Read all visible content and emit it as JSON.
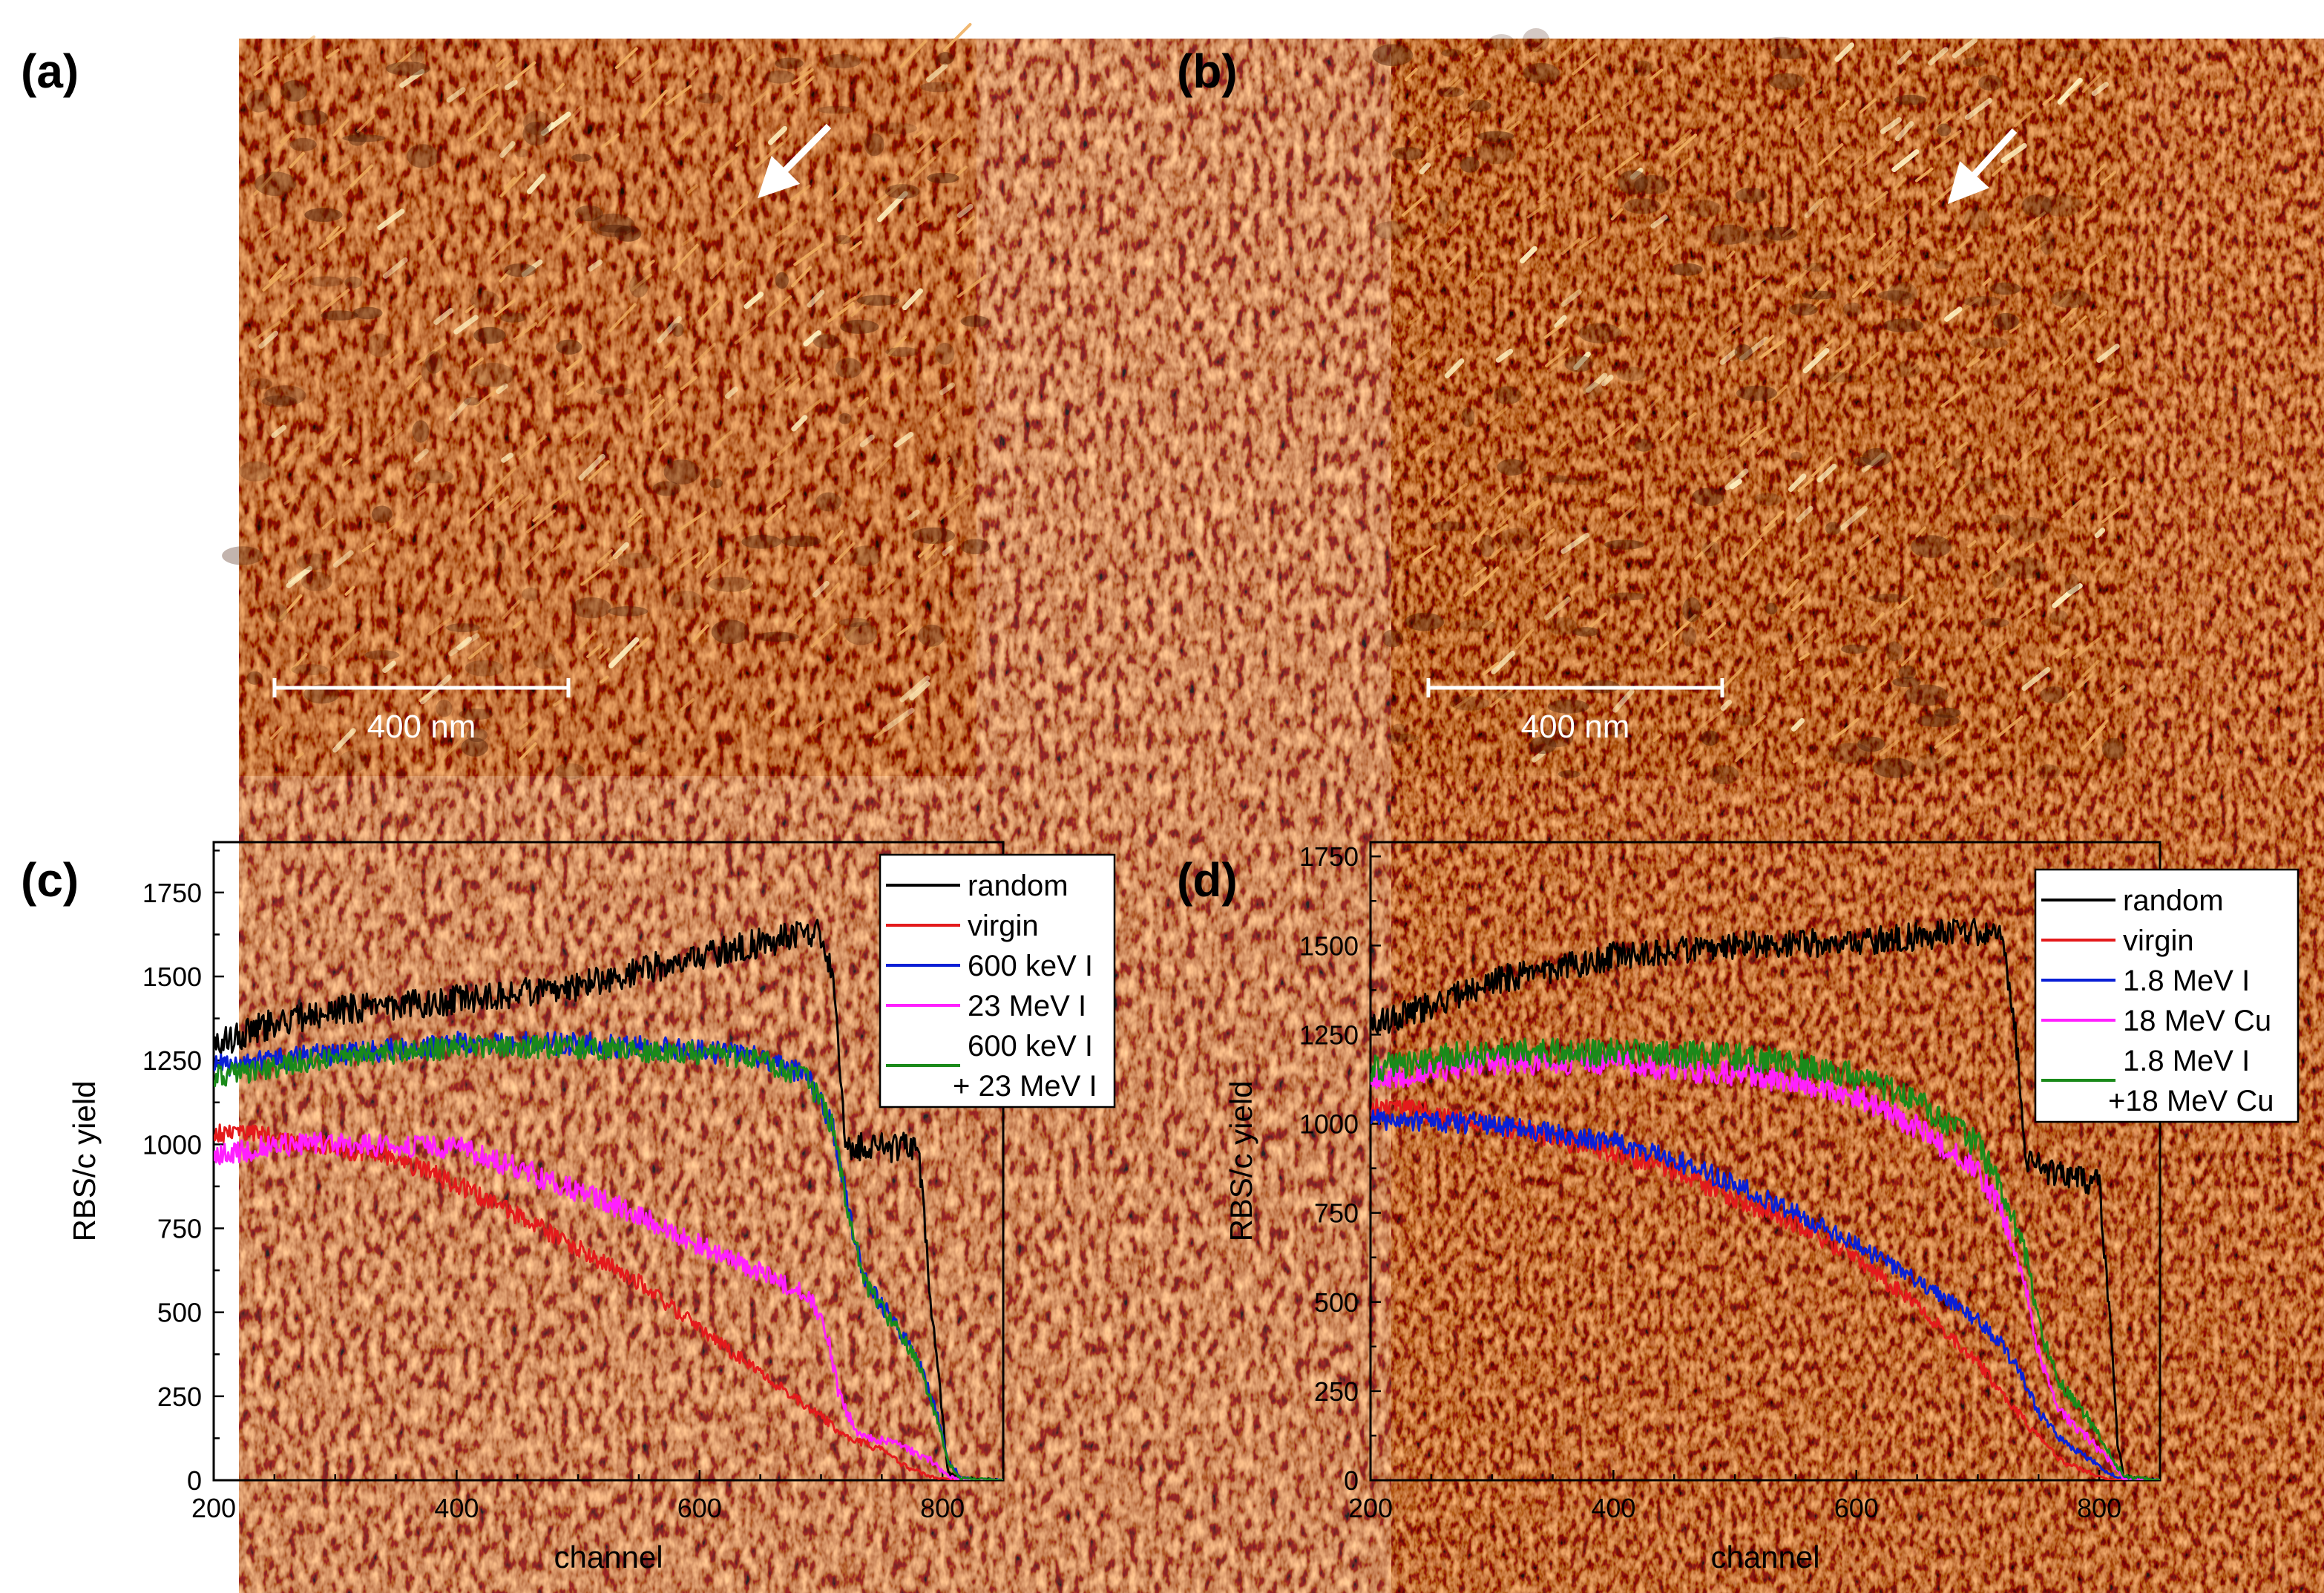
{
  "panels": {
    "a": {
      "label": "(a)",
      "scale_bar": "400 nm"
    },
    "b": {
      "label": "(b)",
      "scale_bar": "400 nm"
    },
    "c": {
      "label": "(c)"
    },
    "d": {
      "label": "(d)"
    }
  },
  "colors": {
    "afm_base": "#a85a14",
    "afm_dark": "#4a1a05",
    "afm_bright": "#fff2c0",
    "random": "#000000",
    "virgin": "#e41a1c",
    "blue": "#0a1fd6",
    "magenta": "#ff1fff",
    "green": "#1a8a1a"
  },
  "chart_data": [
    {
      "type": "line",
      "panel": "c",
      "xlabel": "channel",
      "ylabel": "RBS/c yield",
      "xlim": [
        200,
        850
      ],
      "ylim": [
        0,
        1900
      ],
      "xticks": [
        200,
        400,
        600,
        800
      ],
      "yticks": [
        0,
        250,
        500,
        750,
        1000,
        1250,
        1500,
        1750
      ],
      "legend_position": "top-right",
      "series": [
        {
          "name": "random",
          "color": "#000000",
          "noise": 45,
          "points": [
            [
              200,
              1300
            ],
            [
              250,
              1360
            ],
            [
              300,
              1400
            ],
            [
              400,
              1430
            ],
            [
              500,
              1470
            ],
            [
              600,
              1560
            ],
            [
              650,
              1600
            ],
            [
              700,
              1630
            ],
            [
              710,
              1500
            ],
            [
              720,
              1000
            ],
            [
              770,
              990
            ],
            [
              780,
              980
            ],
            [
              790,
              550
            ],
            [
              800,
              180
            ],
            [
              805,
              20
            ],
            [
              815,
              5
            ],
            [
              850,
              0
            ]
          ]
        },
        {
          "name": "virgin",
          "color": "#e41a1c",
          "noise": 30,
          "points": [
            [
              200,
              1040
            ],
            [
              250,
              1020
            ],
            [
              300,
              990
            ],
            [
              350,
              960
            ],
            [
              400,
              880
            ],
            [
              450,
              790
            ],
            [
              500,
              690
            ],
            [
              550,
              590
            ],
            [
              600,
              450
            ],
            [
              650,
              320
            ],
            [
              700,
              190
            ],
            [
              720,
              130
            ],
            [
              750,
              90
            ],
            [
              770,
              40
            ],
            [
              790,
              10
            ],
            [
              810,
              0
            ],
            [
              850,
              0
            ]
          ]
        },
        {
          "name": "600 keV I",
          "color": "#0a1fd6",
          "noise": 35,
          "points": [
            [
              200,
              1230
            ],
            [
              300,
              1270
            ],
            [
              400,
              1300
            ],
            [
              500,
              1300
            ],
            [
              600,
              1280
            ],
            [
              650,
              1260
            ],
            [
              690,
              1200
            ],
            [
              710,
              1050
            ],
            [
              720,
              850
            ],
            [
              735,
              600
            ],
            [
              760,
              470
            ],
            [
              780,
              360
            ],
            [
              795,
              200
            ],
            [
              805,
              60
            ],
            [
              815,
              5
            ],
            [
              850,
              0
            ]
          ]
        },
        {
          "name": "23 MeV I",
          "color": "#ff1fff",
          "noise": 35,
          "points": [
            [
              200,
              960
            ],
            [
              250,
              1000
            ],
            [
              300,
              1000
            ],
            [
              400,
              990
            ],
            [
              450,
              930
            ],
            [
              500,
              860
            ],
            [
              550,
              790
            ],
            [
              600,
              700
            ],
            [
              650,
              620
            ],
            [
              690,
              550
            ],
            [
              705,
              440
            ],
            [
              715,
              250
            ],
            [
              730,
              140
            ],
            [
              760,
              110
            ],
            [
              790,
              60
            ],
            [
              805,
              10
            ],
            [
              820,
              0
            ],
            [
              850,
              0
            ]
          ]
        },
        {
          "name": "600 keV I\n+ 23 MeV I",
          "color": "#1a8a1a",
          "noise": 35,
          "points": [
            [
              200,
              1200
            ],
            [
              300,
              1260
            ],
            [
              400,
              1290
            ],
            [
              500,
              1290
            ],
            [
              600,
              1270
            ],
            [
              650,
              1250
            ],
            [
              690,
              1190
            ],
            [
              710,
              1050
            ],
            [
              720,
              850
            ],
            [
              735,
              590
            ],
            [
              760,
              460
            ],
            [
              780,
              350
            ],
            [
              795,
              190
            ],
            [
              805,
              55
            ],
            [
              815,
              5
            ],
            [
              850,
              0
            ]
          ]
        }
      ]
    },
    {
      "type": "line",
      "panel": "d",
      "xlabel": "channel",
      "ylabel": "RBS/c yield",
      "xlim": [
        200,
        850
      ],
      "ylim": [
        0,
        1790
      ],
      "xticks": [
        200,
        400,
        600,
        800
      ],
      "yticks": [
        0,
        250,
        500,
        750,
        1000,
        1250,
        1500,
        1750
      ],
      "legend_position": "top-right",
      "series": [
        {
          "name": "random",
          "color": "#000000",
          "noise": 40,
          "points": [
            [
              200,
              1280
            ],
            [
              250,
              1330
            ],
            [
              300,
              1400
            ],
            [
              400,
              1470
            ],
            [
              500,
              1500
            ],
            [
              600,
              1510
            ],
            [
              700,
              1540
            ],
            [
              720,
              1530
            ],
            [
              730,
              1300
            ],
            [
              740,
              900
            ],
            [
              770,
              850
            ],
            [
              800,
              830
            ],
            [
              810,
              400
            ],
            [
              815,
              100
            ],
            [
              820,
              10
            ],
            [
              850,
              0
            ]
          ]
        },
        {
          "name": "virgin",
          "color": "#e41a1c",
          "noise": 30,
          "points": [
            [
              200,
              1050
            ],
            [
              250,
              1030
            ],
            [
              300,
              1000
            ],
            [
              400,
              920
            ],
            [
              450,
              870
            ],
            [
              500,
              790
            ],
            [
              550,
              720
            ],
            [
              600,
              620
            ],
            [
              650,
              490
            ],
            [
              700,
              330
            ],
            [
              730,
              200
            ],
            [
              750,
              120
            ],
            [
              770,
              50
            ],
            [
              800,
              10
            ],
            [
              810,
              0
            ],
            [
              850,
              0
            ]
          ]
        },
        {
          "name": "1.8 MeV I",
          "color": "#0a1fd6",
          "noise": 30,
          "points": [
            [
              200,
              1010
            ],
            [
              300,
              1000
            ],
            [
              400,
              950
            ],
            [
              450,
              900
            ],
            [
              500,
              830
            ],
            [
              550,
              750
            ],
            [
              600,
              660
            ],
            [
              650,
              560
            ],
            [
              700,
              450
            ],
            [
              720,
              380
            ],
            [
              735,
              300
            ],
            [
              750,
              190
            ],
            [
              770,
              110
            ],
            [
              800,
              40
            ],
            [
              815,
              5
            ],
            [
              850,
              0
            ]
          ]
        },
        {
          "name": "18 MeV Cu",
          "color": "#ff1fff",
          "noise": 35,
          "points": [
            [
              200,
              1120
            ],
            [
              250,
              1150
            ],
            [
              300,
              1170
            ],
            [
              400,
              1170
            ],
            [
              500,
              1140
            ],
            [
              550,
              1120
            ],
            [
              600,
              1080
            ],
            [
              650,
              990
            ],
            [
              700,
              870
            ],
            [
              720,
              750
            ],
            [
              740,
              540
            ],
            [
              750,
              360
            ],
            [
              765,
              200
            ],
            [
              790,
              120
            ],
            [
              810,
              50
            ],
            [
              820,
              5
            ],
            [
              850,
              0
            ]
          ]
        },
        {
          "name": "1.8 MeV I\n+18 MeV Cu",
          "color": "#1a8a1a",
          "noise": 40,
          "points": [
            [
              200,
              1150
            ],
            [
              250,
              1180
            ],
            [
              300,
              1200
            ],
            [
              400,
              1200
            ],
            [
              500,
              1190
            ],
            [
              550,
              1170
            ],
            [
              600,
              1130
            ],
            [
              650,
              1060
            ],
            [
              700,
              940
            ],
            [
              720,
              820
            ],
            [
              740,
              620
            ],
            [
              750,
              440
            ],
            [
              765,
              280
            ],
            [
              790,
              180
            ],
            [
              810,
              70
            ],
            [
              820,
              10
            ],
            [
              850,
              0
            ]
          ]
        }
      ]
    }
  ]
}
